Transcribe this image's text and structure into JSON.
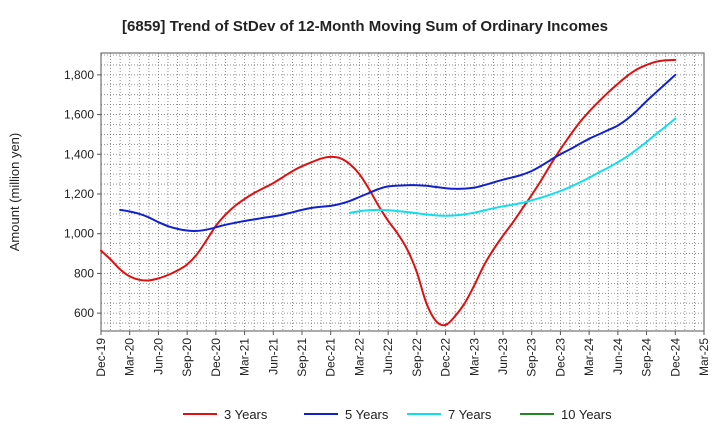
{
  "chart_data": {
    "type": "line",
    "title": "[6859]  Trend of StDev of 12-Month Moving Sum of Ordinary Incomes",
    "xlabel": "",
    "ylabel": "Amount (million yen)",
    "ylim": [
      510,
      1910
    ],
    "y_ticks": [
      600,
      800,
      1000,
      1200,
      1400,
      1600,
      1800
    ],
    "y_tick_labels": [
      "600",
      "800",
      "1,000",
      "1,200",
      "1,400",
      "1,600",
      "1,800"
    ],
    "x_tick_labels": [
      "Dec-19",
      "Mar-20",
      "Jun-20",
      "Sep-20",
      "Dec-20",
      "Mar-21",
      "Jun-21",
      "Sep-21",
      "Dec-21",
      "Mar-22",
      "Jun-22",
      "Sep-22",
      "Dec-22",
      "Mar-23",
      "Jun-23",
      "Sep-23",
      "Dec-23",
      "Mar-24",
      "Jun-24",
      "Sep-24",
      "Dec-24",
      "Mar-25"
    ],
    "x_start": "Dec-19",
    "x_unit": "months since Dec-19",
    "xlim": [
      0,
      63
    ],
    "grid": true,
    "legend_position": "bottom",
    "series": [
      {
        "name": "3 Years",
        "color": "#dd1111",
        "x": [
          0,
          1,
          2,
          3,
          4,
          5,
          6,
          7,
          8,
          9,
          10,
          11,
          12,
          13,
          14,
          15,
          16,
          17,
          18,
          19,
          20,
          21,
          22,
          23,
          24,
          25,
          26,
          27,
          28,
          29,
          30,
          31,
          32,
          33,
          34,
          35,
          36,
          37,
          38,
          39,
          40,
          41,
          42,
          43,
          44,
          45,
          46,
          47,
          48,
          49,
          50,
          51,
          52,
          53,
          54,
          55,
          56,
          57,
          58,
          59,
          60
        ],
        "values": [
          915,
          870,
          820,
          785,
          768,
          765,
          775,
          792,
          815,
          845,
          895,
          965,
          1040,
          1095,
          1140,
          1175,
          1205,
          1230,
          1255,
          1285,
          1315,
          1340,
          1360,
          1378,
          1387,
          1380,
          1350,
          1300,
          1225,
          1140,
          1065,
          1000,
          920,
          805,
          650,
          560,
          540,
          585,
          650,
          740,
          840,
          920,
          990,
          1055,
          1125,
          1195,
          1270,
          1350,
          1425,
          1495,
          1560,
          1615,
          1665,
          1712,
          1755,
          1795,
          1828,
          1850,
          1866,
          1873,
          1875
        ]
      },
      {
        "name": "5 Years",
        "color": "#1122cc",
        "x": [
          2,
          3,
          4,
          5,
          6,
          7,
          8,
          9,
          10,
          11,
          12,
          13,
          14,
          15,
          16,
          17,
          18,
          19,
          20,
          21,
          22,
          23,
          24,
          25,
          26,
          27,
          28,
          29,
          30,
          31,
          32,
          33,
          34,
          35,
          36,
          37,
          38,
          39,
          40,
          41,
          42,
          43,
          44,
          45,
          46,
          47,
          48,
          49,
          50,
          51,
          52,
          53,
          54,
          55,
          56,
          57,
          58,
          59,
          60
        ],
        "values": [
          1120,
          1112,
          1100,
          1082,
          1058,
          1038,
          1024,
          1016,
          1014,
          1020,
          1032,
          1045,
          1055,
          1064,
          1072,
          1080,
          1087,
          1096,
          1108,
          1120,
          1130,
          1136,
          1140,
          1150,
          1165,
          1185,
          1205,
          1225,
          1238,
          1242,
          1244,
          1244,
          1241,
          1235,
          1229,
          1226,
          1227,
          1232,
          1244,
          1258,
          1272,
          1284,
          1297,
          1316,
          1342,
          1372,
          1400,
          1425,
          1452,
          1478,
          1500,
          1522,
          1545,
          1578,
          1620,
          1668,
          1712,
          1756,
          1800
        ]
      },
      {
        "name": "7 Years",
        "color": "#11ddee",
        "x": [
          26,
          27,
          28,
          29,
          30,
          31,
          32,
          33,
          34,
          35,
          36,
          37,
          38,
          39,
          40,
          41,
          42,
          43,
          44,
          45,
          46,
          47,
          48,
          49,
          50,
          51,
          52,
          53,
          54,
          55,
          56,
          57,
          58,
          59,
          60
        ],
        "values": [
          1105,
          1113,
          1118,
          1120,
          1118,
          1114,
          1109,
          1103,
          1097,
          1092,
          1090,
          1092,
          1098,
          1106,
          1117,
          1128,
          1138,
          1146,
          1155,
          1168,
          1182,
          1198,
          1215,
          1235,
          1258,
          1282,
          1308,
          1333,
          1360,
          1390,
          1425,
          1462,
          1502,
          1540,
          1580
        ]
      },
      {
        "name": "10 Years",
        "color": "#228822",
        "x": [],
        "values": []
      }
    ]
  }
}
